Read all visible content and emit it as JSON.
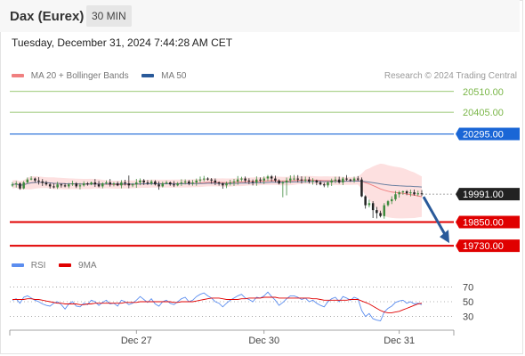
{
  "header": {
    "title": "Dax (Eurex)",
    "timeframe": "30 MIN"
  },
  "datetime": "Tuesday, December 31, 2024 7:44:28 AM CET",
  "legend": {
    "items": [
      {
        "label": "MA 20 + Bollinger Bands",
        "color": "#f08080"
      },
      {
        "label": "MA 50",
        "color": "#2a5a9a"
      }
    ]
  },
  "credit": "Research © 2024 Trading Central",
  "rsi_legend": {
    "items": [
      {
        "label": "RSI",
        "color": "#5b8def"
      },
      {
        "label": "9MA",
        "color": "#e00000"
      }
    ]
  },
  "colors": {
    "resistance_green": "#7ab648",
    "pivot_blue": "#1a66d6",
    "support_red": "#e00000",
    "current": "#222222",
    "candle_up": "#3e8a3e",
    "candle_down": "#222222",
    "arrow": "#2a5a9a",
    "bands": "#fde0e0",
    "ma20": "#f08080",
    "ma50": "#6a7fa0"
  },
  "chart_data": [
    {
      "type": "line",
      "subtype": "candlestick",
      "ylim": [
        19690,
        20545
      ],
      "x_ticks": [
        "Dec 27",
        "Dec 30",
        "Dec 31"
      ],
      "levels": [
        {
          "label": "20510.00",
          "value": 20510,
          "style": "resistance"
        },
        {
          "label": "20405.00",
          "value": 20405,
          "style": "resistance"
        },
        {
          "label": "20295.00",
          "value": 20295,
          "style": "pivot"
        },
        {
          "label": "19991.00",
          "value": 19991,
          "style": "current"
        },
        {
          "label": "19850.00",
          "value": 19850,
          "style": "support"
        },
        {
          "label": "19730.00",
          "value": 19730,
          "style": "support"
        }
      ],
      "series": [
        {
          "name": "Price",
          "close": [
            20040,
            20045,
            20020,
            20050,
            20065,
            20070,
            20060,
            20055,
            20048,
            20040,
            20030,
            20025,
            20040,
            20035,
            20030,
            20040,
            20045,
            20030,
            20035,
            20045,
            20040,
            20050,
            20040,
            20030,
            20045,
            20050,
            20040,
            20045,
            20035,
            20050,
            20045,
            20035,
            20040,
            20050,
            20060,
            20050,
            20045,
            20055,
            20040,
            20030,
            20045,
            20050,
            20040,
            20035,
            20045,
            20050,
            20055,
            20045,
            20050,
            20060,
            20065,
            20070,
            20065,
            20060,
            20050,
            20045,
            20035,
            20045,
            20050,
            20055,
            20065,
            20070,
            20060,
            20055,
            20050,
            20065,
            20060,
            20070,
            20080,
            20070,
            20060,
            20045,
            20050,
            20060,
            20070,
            20070,
            20065,
            20060,
            20065,
            20055,
            20060,
            20050,
            20040,
            20035,
            20050,
            20060,
            20065,
            20050,
            20070,
            20065,
            20060,
            20070,
            20065,
            19980,
            19935,
            19945,
            19910,
            19895,
            19880,
            19935,
            19955,
            19965,
            19990,
            20000,
            20005,
            19995,
            20000,
            19990,
            19995,
            19991
          ]
        },
        {
          "name": "MA 20"
        },
        {
          "name": "MA 50"
        }
      ]
    },
    {
      "type": "line",
      "ylim": [
        15,
        85
      ],
      "y_ticks": [
        70,
        50,
        30
      ],
      "series": [
        {
          "name": "RSI",
          "values": [
            52,
            54,
            48,
            56,
            58,
            55,
            52,
            50,
            47,
            45,
            44,
            48,
            50,
            46,
            40,
            47,
            50,
            44,
            43,
            48,
            46,
            52,
            50,
            45,
            49,
            52,
            47,
            48,
            44,
            52,
            50,
            46,
            48,
            52,
            57,
            53,
            49,
            54,
            47,
            44,
            50,
            52,
            48,
            46,
            50,
            54,
            56,
            50,
            52,
            57,
            60,
            62,
            58,
            55,
            50,
            48,
            43,
            48,
            52,
            55,
            58,
            60,
            55,
            53,
            50,
            56,
            55,
            58,
            63,
            57,
            52,
            45,
            49,
            54,
            58,
            58,
            56,
            53,
            55,
            50,
            52,
            48,
            45,
            43,
            50,
            54,
            56,
            50,
            57,
            55,
            52,
            56,
            54,
            38,
            30,
            34,
            27,
            25,
            24,
            36,
            41,
            44,
            49,
            51,
            52,
            48,
            50,
            47,
            48,
            46
          ]
        },
        {
          "name": "9MA",
          "values": [
            53,
            53,
            53,
            53,
            54,
            54,
            53,
            53,
            52,
            51,
            50,
            49,
            48,
            48,
            47,
            47,
            47,
            47,
            46,
            46,
            47,
            47,
            48,
            48,
            48,
            48,
            48,
            48,
            48,
            48,
            49,
            49,
            49,
            49,
            50,
            50,
            50,
            50,
            50,
            50,
            50,
            50,
            50,
            49,
            49,
            50,
            50,
            50,
            50,
            51,
            52,
            53,
            54,
            55,
            55,
            55,
            54,
            53,
            53,
            53,
            53,
            54,
            54,
            55,
            55,
            55,
            55,
            56,
            56,
            56,
            56,
            55,
            55,
            55,
            55,
            55,
            55,
            55,
            55,
            55,
            54,
            54,
            53,
            52,
            52,
            52,
            52,
            52,
            52,
            52,
            53,
            53,
            53,
            51,
            49,
            47,
            44,
            41,
            38,
            36,
            35,
            35,
            36,
            37,
            39,
            41,
            43,
            45,
            47,
            48
          ]
        }
      ]
    }
  ]
}
